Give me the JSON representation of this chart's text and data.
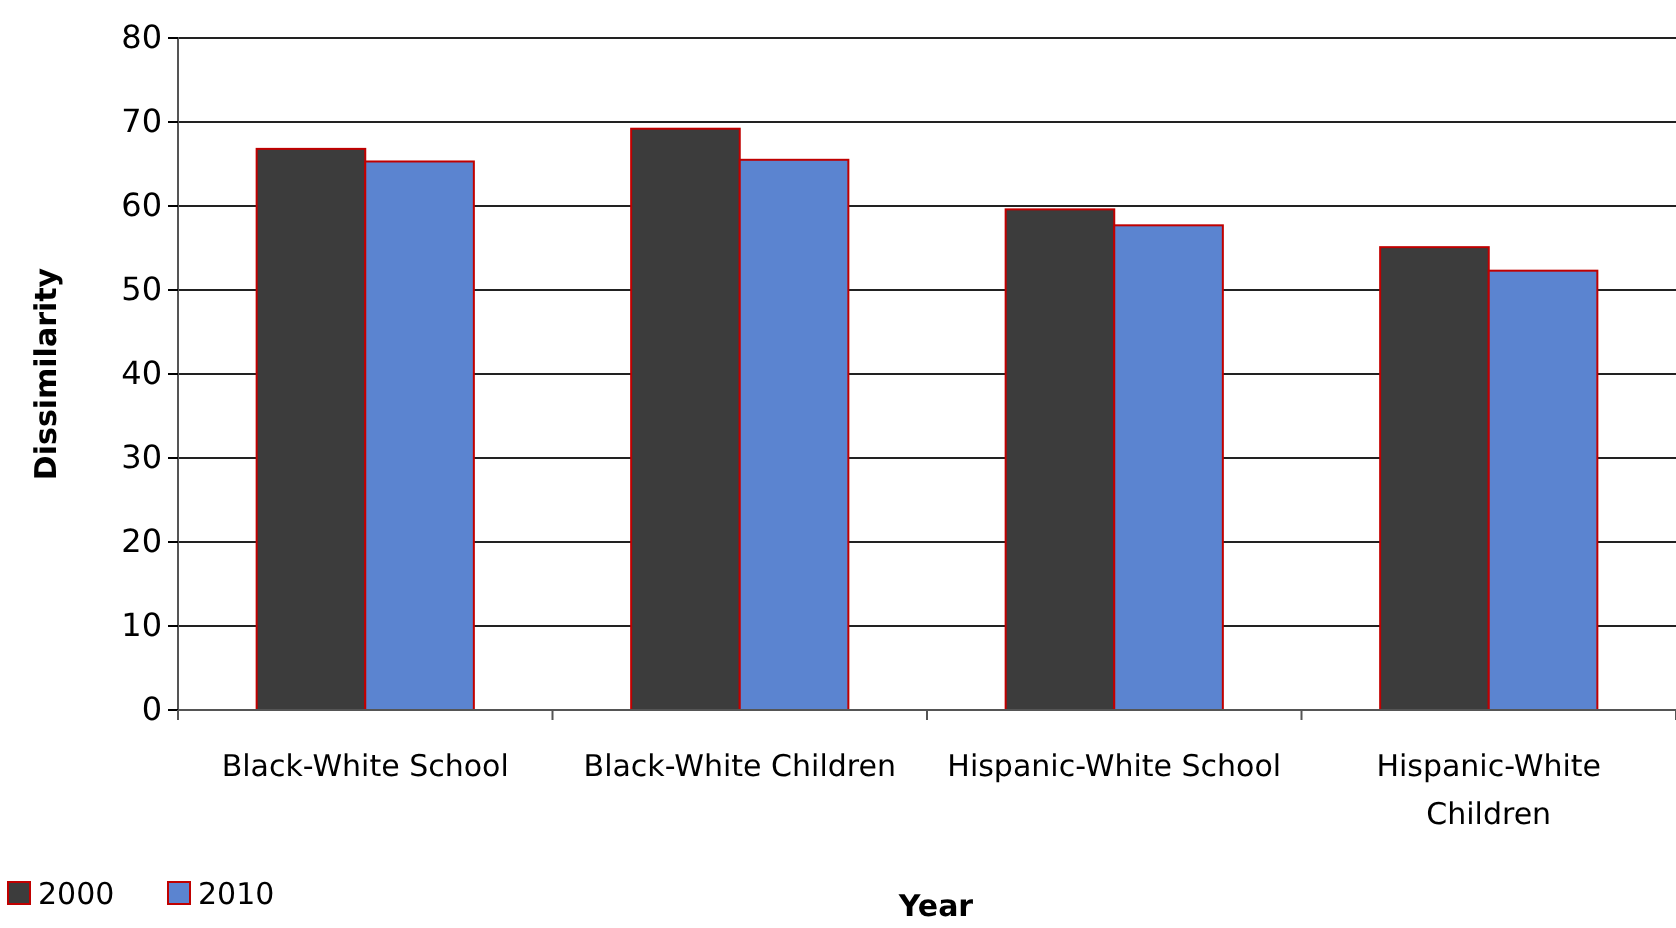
{
  "chart_data": {
    "type": "bar",
    "xlabel": "Year",
    "ylabel": "Dissimilarity",
    "categories": [
      "Black-White School",
      "Black-White Children",
      "Hispanic-White School",
      "Hispanic-White Children"
    ],
    "series": [
      {
        "name": "2000",
        "color": "#3c3c3c",
        "values": [
          66.8,
          69.2,
          59.6,
          55.1
        ]
      },
      {
        "name": "2010",
        "color": "#5b84d0",
        "values": [
          65.3,
          65.5,
          57.7,
          52.3
        ]
      }
    ],
    "ylim": [
      0,
      80
    ],
    "yticks": [
      0,
      10,
      20,
      30,
      40,
      50,
      60,
      70,
      80
    ],
    "grid": "y",
    "legend": "bottom left"
  }
}
